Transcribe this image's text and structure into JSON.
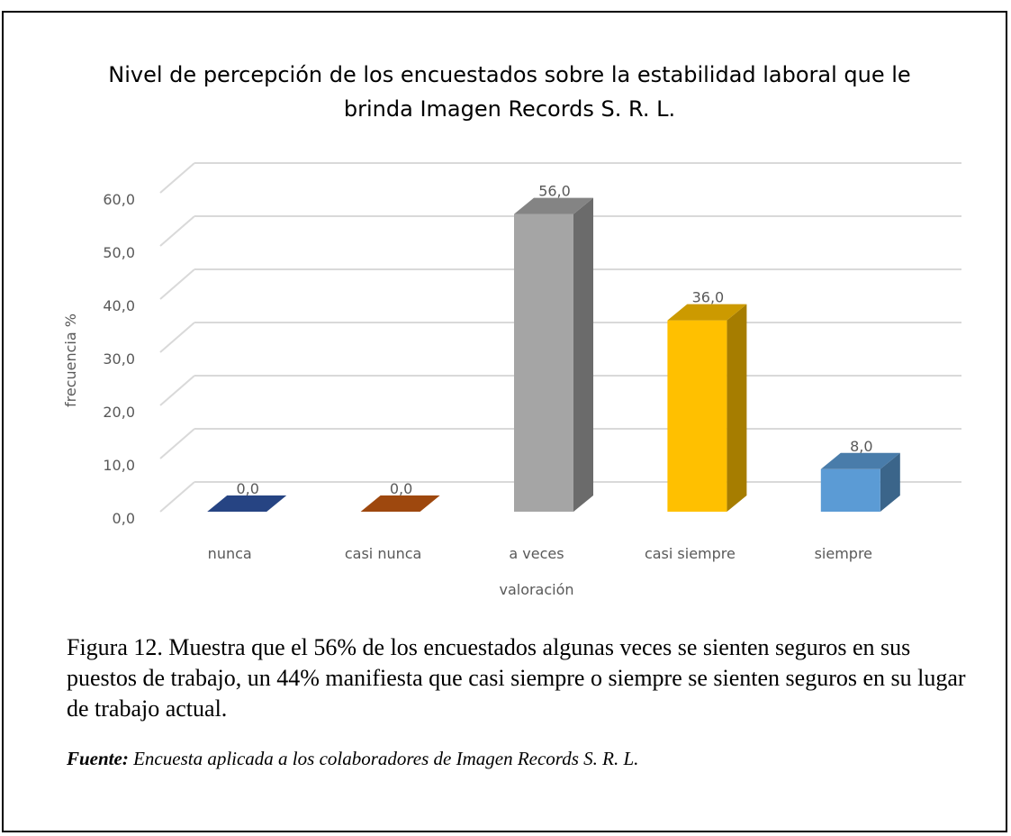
{
  "chart_data": {
    "type": "bar3d",
    "title": "Nivel de percepción de los encuestados sobre la estabilidad laboral que le brinda Imagen Records S. R. L.",
    "x_label": "valoración",
    "y_label": "frecuencia %",
    "categories": [
      "nunca",
      "casi nunca",
      "a veces",
      "casi siempre",
      "siempre"
    ],
    "values": [
      0,
      0,
      56,
      36,
      8
    ],
    "value_labels": [
      "0,0",
      "0,0",
      "56,0",
      "36,0",
      "8,0"
    ],
    "colors": [
      "#2f55a4",
      "#c55a11",
      "#a5a5a5",
      "#ffc000",
      "#5b9bd5"
    ],
    "ylim": [
      0,
      60
    ],
    "yticks": [
      {
        "value": 0,
        "label": "0,0"
      },
      {
        "value": 10,
        "label": "10,0"
      },
      {
        "value": 20,
        "label": "20,0"
      },
      {
        "value": 30,
        "label": "30,0"
      },
      {
        "value": 40,
        "label": "40,0"
      },
      {
        "value": 50,
        "label": "50,0"
      },
      {
        "value": 60,
        "label": "60,0"
      }
    ],
    "grid": true
  },
  "caption": "Figura 12. Muestra que el 56% de los encuestados algunas veces se sienten seguros en sus puestos de trabajo, un 44% manifiesta que casi siempre o siempre se sienten seguros en su lugar de trabajo actual.",
  "source": {
    "label": "Fuente:",
    "text": " Encuesta aplicada a los colaboradores de Imagen Records S. R. L."
  }
}
